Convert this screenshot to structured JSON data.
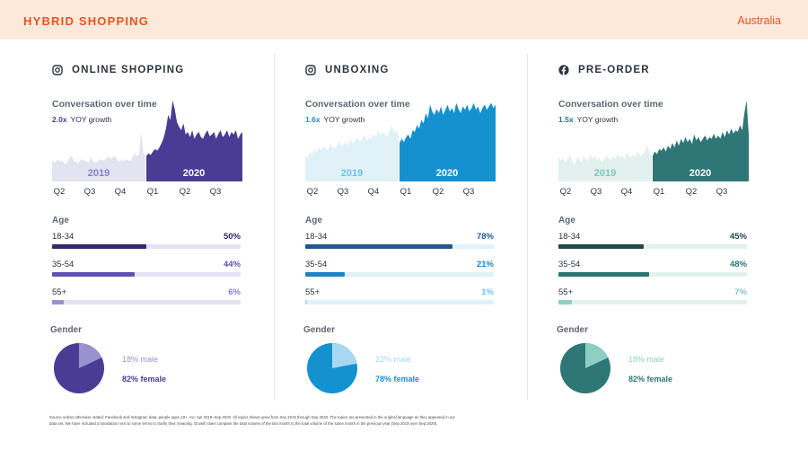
{
  "header": {
    "brand": "HYBRID SHOPPING",
    "region": "Australia"
  },
  "colors": {
    "brand_orange": "#e8531f",
    "header_bg": "#fde9da"
  },
  "chart_data": [
    {
      "type": "area",
      "panel": "online-shopping",
      "icon": "instagram-icon",
      "title": "ONLINE SHOPPING",
      "subtitle": "Conversation over time",
      "yoy_multiplier": "2.0x",
      "yoy_label": "YOY growth",
      "x_ticks": [
        "Q2",
        "Q3",
        "Q4",
        "Q1",
        "Q2",
        "Q3"
      ],
      "period_labels": [
        "2019",
        "2020"
      ],
      "colors": {
        "light": "#e3e3f1",
        "dark": "#4a3c94",
        "bar_dark": "#2f2a6c",
        "bar_mid": "#5d52ad",
        "pie_light": "#9a91cf",
        "pct_light": "#8a80c8"
      },
      "series": [
        {
          "values": [
            0.25,
            0.22,
            0.24,
            0.26,
            0.23,
            0.24,
            0.2,
            0.22,
            0.27,
            0.3,
            0.24,
            0.23,
            0.21,
            0.25,
            0.26,
            0.24,
            0.23,
            0.22,
            0.28,
            0.24,
            0.22,
            0.23,
            0.26,
            0.25,
            0.24,
            0.27,
            0.29,
            0.26,
            0.28,
            0.3,
            0.25,
            0.23,
            0.26,
            0.24,
            0.26,
            0.25,
            0.24,
            0.28,
            0.33,
            0.3,
            0.31,
            0.58,
            0.34,
            0.3
          ]
        },
        {
          "values": [
            0.3,
            0.33,
            0.31,
            0.35,
            0.38,
            0.36,
            0.4,
            0.45,
            0.52,
            0.62,
            0.78,
            0.72,
            0.95,
            0.85,
            0.7,
            0.64,
            0.6,
            0.68,
            0.55,
            0.58,
            0.52,
            0.6,
            0.5,
            0.55,
            0.58,
            0.52,
            0.5,
            0.56,
            0.6,
            0.53,
            0.55,
            0.58,
            0.5,
            0.56,
            0.6,
            0.52,
            0.55,
            0.6,
            0.52,
            0.58,
            0.55,
            0.6,
            0.5,
            0.55,
            0.58
          ]
        }
      ],
      "age": [
        {
          "label": "18-34",
          "value": 50,
          "display": "50%"
        },
        {
          "label": "35-54",
          "value": 44,
          "display": "44%"
        },
        {
          "label": "55+",
          "value": 6,
          "display": "6%"
        }
      ],
      "gender": {
        "male": 18,
        "female": 82,
        "male_label": "18% male",
        "female_label": "82% female"
      }
    },
    {
      "type": "area",
      "panel": "unboxing",
      "icon": "instagram-icon",
      "title": "UNBOXING",
      "subtitle": "Conversation over time",
      "yoy_multiplier": "1.6x",
      "yoy_label": "YOY growth",
      "x_ticks": [
        "Q2",
        "Q3",
        "Q4",
        "Q1",
        "Q2",
        "Q3"
      ],
      "period_labels": [
        "2019",
        "2020"
      ],
      "colors": {
        "light": "#e0f1f8",
        "dark": "#1392cf",
        "bar_dark": "#21598e",
        "bar_mid": "#1f82c4",
        "pie_light": "#a7d7f1",
        "pct_light": "#6ec2ea"
      },
      "series": [
        {
          "values": [
            0.3,
            0.28,
            0.35,
            0.32,
            0.38,
            0.34,
            0.4,
            0.36,
            0.42,
            0.38,
            0.36,
            0.45,
            0.4,
            0.38,
            0.42,
            0.48,
            0.4,
            0.44,
            0.46,
            0.42,
            0.5,
            0.44,
            0.48,
            0.52,
            0.46,
            0.5,
            0.55,
            0.48,
            0.52,
            0.5,
            0.56,
            0.52,
            0.6,
            0.54,
            0.58,
            0.55,
            0.52,
            0.6,
            0.65,
            0.58,
            0.6,
            0.56
          ]
        },
        {
          "values": [
            0.45,
            0.5,
            0.46,
            0.52,
            0.55,
            0.5,
            0.6,
            0.58,
            0.66,
            0.62,
            0.72,
            0.68,
            0.8,
            0.74,
            0.9,
            0.82,
            0.78,
            0.85,
            0.8,
            0.88,
            0.78,
            0.84,
            0.9,
            0.82,
            0.86,
            0.8,
            0.92,
            0.85,
            0.8,
            0.88,
            0.84,
            0.9,
            0.82,
            0.86,
            0.92,
            0.84,
            0.88,
            0.8,
            0.86,
            0.9,
            0.84,
            0.88,
            0.92,
            0.86,
            0.9
          ]
        }
      ],
      "age": [
        {
          "label": "18-34",
          "value": 78,
          "display": "78%"
        },
        {
          "label": "35-54",
          "value": 21,
          "display": "21%"
        },
        {
          "label": "55+",
          "value": 1,
          "display": "1%"
        }
      ],
      "gender": {
        "male": 22,
        "female": 78,
        "male_label": "22% male",
        "female_label": "78% female"
      }
    },
    {
      "type": "area",
      "panel": "pre-order",
      "icon": "facebook-icon",
      "title": "PRE-ORDER",
      "subtitle": "Conversation over time",
      "yoy_multiplier": "1.5x",
      "yoy_label": "YOY growth",
      "x_ticks": [
        "Q2",
        "Q3",
        "Q4",
        "Q1",
        "Q2",
        "Q3"
      ],
      "period_labels": [
        "2019",
        "2020"
      ],
      "colors": {
        "light": "#e2f1ee",
        "dark": "#2f7777",
        "bar_dark": "#214648",
        "bar_mid": "#2b7474",
        "pie_light": "#8ecfc4",
        "pct_light": "#7fc7bd"
      },
      "series": [
        {
          "values": [
            0.3,
            0.24,
            0.28,
            0.22,
            0.26,
            0.3,
            0.24,
            0.2,
            0.26,
            0.28,
            0.22,
            0.3,
            0.26,
            0.24,
            0.32,
            0.26,
            0.3,
            0.25,
            0.28,
            0.22,
            0.26,
            0.3,
            0.27,
            0.24,
            0.3,
            0.26,
            0.33,
            0.28,
            0.3,
            0.26,
            0.34,
            0.3,
            0.28,
            0.32,
            0.29,
            0.35,
            0.3,
            0.32,
            0.36,
            0.42,
            0.34,
            0.3
          ]
        },
        {
          "values": [
            0.3,
            0.35,
            0.32,
            0.38,
            0.36,
            0.4,
            0.35,
            0.42,
            0.38,
            0.45,
            0.4,
            0.48,
            0.42,
            0.5,
            0.45,
            0.52,
            0.46,
            0.5,
            0.44,
            0.55,
            0.48,
            0.52,
            0.46,
            0.5,
            0.54,
            0.48,
            0.52,
            0.5,
            0.56,
            0.5,
            0.54,
            0.5,
            0.58,
            0.52,
            0.6,
            0.55,
            0.62,
            0.56,
            0.6,
            0.58,
            0.66,
            0.6,
            0.8,
            0.95,
            0.55
          ]
        }
      ],
      "age": [
        {
          "label": "18-34",
          "value": 45,
          "display": "45%"
        },
        {
          "label": "35-54",
          "value": 48,
          "display": "48%"
        },
        {
          "label": "55+",
          "value": 7,
          "display": "7%"
        }
      ],
      "gender": {
        "male": 18,
        "female": 82,
        "male_label": "18% male",
        "female_label": "82% female"
      }
    }
  ],
  "labels": {
    "age_header": "Age",
    "gender_header": "Gender"
  },
  "footer": {
    "line1": "Source unless otherwise stated: Facebook and Instagram data, people ages 18+, AU, Apr 2019–Sep 2020. All topics shown grew from Sep 2019 through Sep 2020. The topics are presented in the original language as they appeared in our",
    "line2": "data set. We have included a translation next to some terms to clarify their meaning. Growth rates compare the total volume of the last month to the total volume of the same month in the previous year (Sep 2019 over Sep 2020)."
  }
}
